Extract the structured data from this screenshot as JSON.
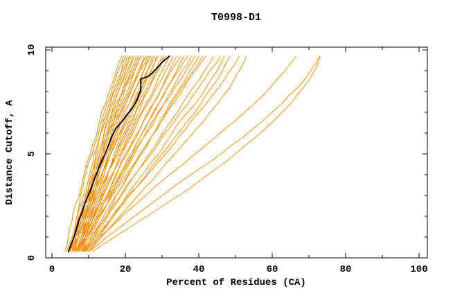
{
  "chart_data": {
    "type": "line",
    "title": "T0998-D1",
    "xlabel": "Percent of Residues (CA)",
    "ylabel": "Distance Cutoff, A",
    "xlim": [
      0,
      100
    ],
    "ylim": [
      0,
      10
    ],
    "grid": false,
    "legend": "none",
    "x_major_ticks": [
      0,
      20,
      40,
      60,
      80,
      100
    ],
    "x_minor_ticks": [
      10,
      30,
      50,
      70,
      90
    ],
    "y_major_ticks": [
      0,
      5,
      10
    ],
    "y_minor_ticks": [
      1,
      2,
      3,
      4,
      6,
      7,
      8,
      9
    ],
    "colors": {
      "model_curve": "#FF8C00",
      "highlight_curve": "#000000",
      "frame": "#000000",
      "background": "#FFFFFF"
    },
    "y_levels": [
      0.3,
      1.0,
      1.8,
      2.6,
      3.4,
      4.2,
      5.0,
      5.8,
      6.6,
      7.4,
      8.2,
      9.0,
      9.7
    ],
    "orange_series": [
      [
        5,
        6,
        7,
        7.5,
        8.5,
        9.5,
        11,
        12.5,
        13.5,
        15,
        16.5,
        18,
        19.5
      ],
      [
        6,
        6.5,
        7.5,
        9,
        10,
        11,
        12,
        13,
        14.5,
        16,
        17.5,
        19,
        20
      ],
      [
        4,
        5.5,
        6.5,
        8,
        9.5,
        10.5,
        11.5,
        13,
        14,
        15.5,
        17,
        19,
        20.5
      ],
      [
        5.5,
        7,
        8,
        9,
        10,
        11.5,
        13,
        14,
        15,
        16.5,
        18,
        19.5,
        21
      ],
      [
        6.5,
        7,
        8.5,
        10,
        11,
        12,
        13,
        14.5,
        16,
        17,
        18.5,
        20,
        21.5
      ],
      [
        5,
        6,
        7,
        8.5,
        10,
        11.5,
        12.5,
        14,
        15.5,
        17,
        18.5,
        20.5,
        22
      ],
      [
        7,
        8,
        9,
        10.5,
        11.5,
        12.5,
        14,
        15.5,
        17,
        18,
        19.5,
        21,
        22.5
      ],
      [
        5.5,
        6.5,
        8,
        9.5,
        11,
        12,
        13.5,
        15,
        16,
        17.5,
        19.5,
        21.5,
        23
      ],
      [
        6,
        7.5,
        9,
        10,
        11,
        12.5,
        14,
        15,
        16.5,
        18,
        20,
        22,
        23.5
      ],
      [
        7.5,
        8.5,
        9.5,
        11,
        12,
        13,
        14.5,
        16,
        17.5,
        19,
        21,
        22.5,
        24
      ],
      [
        5,
        6,
        7.5,
        9,
        10.5,
        12,
        13.5,
        15,
        17,
        18.5,
        20,
        22.5,
        24.5
      ],
      [
        6.5,
        8,
        9,
        10.5,
        12,
        13,
        14.5,
        16,
        17.5,
        19.5,
        21.5,
        23.5,
        25
      ],
      [
        8,
        9,
        10,
        11.5,
        13,
        14,
        15.5,
        17,
        18.5,
        20,
        22,
        24,
        25.5
      ],
      [
        5.5,
        7,
        8.5,
        10,
        11.5,
        13,
        15,
        16.5,
        18,
        20,
        22,
        24,
        26
      ],
      [
        7,
        8.5,
        10,
        11,
        12.5,
        14,
        15.5,
        17.5,
        19,
        21,
        23,
        25,
        26.5
      ],
      [
        6,
        7,
        8.5,
        10.5,
        12,
        14,
        15.5,
        17,
        19,
        21,
        23,
        25,
        27
      ],
      [
        8.5,
        9.5,
        11,
        12.5,
        14,
        15.5,
        17,
        18.5,
        20.5,
        22.5,
        24.5,
        26,
        27.5
      ],
      [
        6.5,
        8,
        9.5,
        11,
        13,
        14.5,
        16,
        18,
        20,
        22,
        24,
        26,
        28
      ],
      [
        7.5,
        9,
        10.5,
        12,
        13.5,
        15.5,
        17.5,
        19,
        21,
        23,
        25,
        27,
        28.5
      ],
      [
        5,
        6.5,
        8,
        10,
        12,
        14,
        16,
        18,
        20,
        22,
        24.5,
        27,
        29
      ],
      [
        7,
        8.5,
        10,
        12,
        13.5,
        15.5,
        17.5,
        19.5,
        21.5,
        23.5,
        26,
        28,
        30
      ],
      [
        8,
        9.5,
        11,
        13,
        15,
        17,
        18.5,
        20.5,
        22.5,
        24.5,
        26.5,
        28.5,
        30.5
      ],
      [
        6,
        8,
        10,
        11.5,
        13.5,
        15.5,
        18,
        20,
        22,
        24,
        26.5,
        29,
        31
      ],
      [
        7.5,
        9,
        11,
        13,
        15,
        17,
        19,
        21,
        23,
        25.5,
        28,
        30,
        32
      ],
      [
        6.5,
        8.5,
        10.5,
        12.5,
        14.5,
        17,
        19,
        21.5,
        23.5,
        26,
        28.5,
        31,
        33
      ],
      [
        8.5,
        10,
        12,
        14,
        16,
        18,
        20,
        22.5,
        25,
        27.5,
        30,
        32,
        34
      ],
      [
        7,
        9,
        11,
        13.5,
        16,
        18,
        20.5,
        23,
        25,
        27.5,
        30,
        32.5,
        35
      ],
      [
        9,
        10.5,
        12.5,
        15,
        17,
        19.5,
        22,
        24,
        26.5,
        29,
        31.5,
        34,
        36
      ],
      [
        7.5,
        9.5,
        12,
        14,
        16.5,
        19,
        21.5,
        24,
        26.5,
        29,
        31.5,
        34.5,
        37
      ],
      [
        8,
        10,
        12.5,
        15,
        17.5,
        20,
        22.5,
        25,
        28,
        30.5,
        33,
        35.5,
        38
      ],
      [
        6.5,
        9,
        11.5,
        14,
        17,
        19.5,
        22,
        25,
        27.5,
        30.5,
        33.5,
        36.5,
        39
      ],
      [
        9.5,
        11.5,
        14,
        16.5,
        19,
        21.5,
        24,
        27,
        29.5,
        32,
        35,
        37.5,
        40
      ],
      [
        8.5,
        11,
        13.5,
        16,
        19,
        21.5,
        24.5,
        27,
        30,
        32.5,
        35.5,
        38.5,
        41
      ],
      [
        7,
        9.5,
        12,
        15,
        18,
        21,
        24,
        27,
        30,
        33,
        36,
        39,
        42
      ],
      [
        9,
        11.5,
        14.5,
        17.5,
        20.5,
        23.5,
        26.5,
        29.5,
        32.5,
        35.5,
        38.5,
        41.5,
        44
      ],
      [
        8,
        11,
        14,
        17,
        20,
        23.5,
        27,
        30,
        33.5,
        37,
        40,
        43,
        46
      ],
      [
        10,
        13,
        16,
        19,
        22,
        25.5,
        29,
        32,
        35,
        39,
        42,
        45,
        47
      ],
      [
        9.5,
        12.5,
        16,
        19.5,
        23,
        26.5,
        30,
        33.5,
        37,
        40.5,
        43.5,
        46.5,
        48.5
      ],
      [
        8.5,
        12,
        15.5,
        19,
        23,
        27,
        31,
        34.5,
        38,
        42,
        45.5,
        48.5,
        51
      ],
      [
        10,
        13.5,
        17.5,
        21.5,
        25.5,
        29.5,
        33.5,
        37.5,
        41.5,
        45,
        48.5,
        51,
        53
      ],
      [
        9,
        13,
        18,
        23,
        28,
        33.5,
        39,
        44.5,
        50,
        55,
        59.5,
        63.5,
        66.5
      ],
      [
        10,
        15,
        21,
        27,
        33,
        39.5,
        46,
        52,
        57.5,
        62.5,
        67,
        70.5,
        73
      ],
      [
        11,
        17,
        24,
        31,
        38,
        44,
        50,
        55.5,
        60.5,
        65,
        68.5,
        71.5,
        73
      ],
      [
        3.5,
        4.5,
        5.5,
        6.5,
        8,
        9,
        10.5,
        12,
        13,
        14.5,
        16,
        17.5,
        19
      ]
    ],
    "black_series_pts": [
      [
        4.5,
        0.3
      ],
      [
        5.2,
        0.65
      ],
      [
        6.0,
        1.0
      ],
      [
        6.8,
        1.45
      ],
      [
        7.3,
        1.8
      ],
      [
        8.2,
        2.2
      ],
      [
        8.9,
        2.6
      ],
      [
        9.9,
        3.0
      ],
      [
        10.8,
        3.4
      ],
      [
        11.6,
        3.8
      ],
      [
        12.5,
        4.2
      ],
      [
        13.4,
        4.6
      ],
      [
        14.5,
        5.0
      ],
      [
        15.4,
        5.4
      ],
      [
        16.2,
        5.8
      ],
      [
        17.3,
        6.2
      ],
      [
        19.3,
        6.6
      ],
      [
        20.5,
        6.9
      ],
      [
        21.9,
        7.2
      ],
      [
        23.2,
        7.6
      ],
      [
        23.8,
        7.9
      ],
      [
        24.2,
        8.05
      ],
      [
        24.2,
        8.6
      ],
      [
        26.5,
        8.75
      ],
      [
        28.5,
        9.1
      ],
      [
        30.0,
        9.4
      ],
      [
        32.0,
        9.7
      ]
    ]
  }
}
